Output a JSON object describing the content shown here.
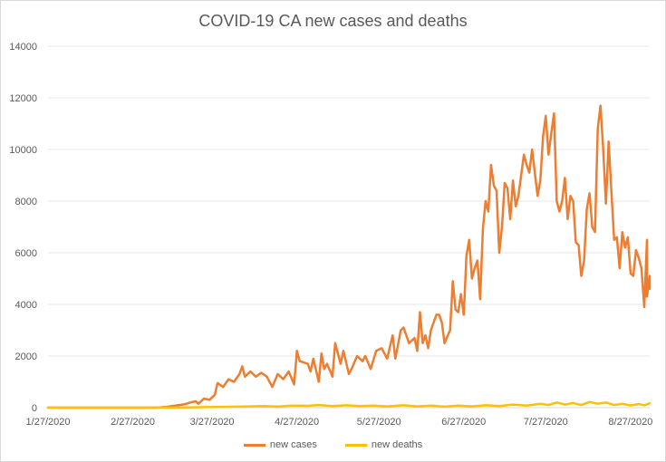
{
  "chart_data": {
    "type": "line",
    "title": "COVID-19 CA new cases and deaths",
    "xlabel": "",
    "ylabel": "",
    "x_ticks": [
      "1/27/2020",
      "2/27/2020",
      "3/27/2020",
      "4/27/2020",
      "5/27/2020",
      "6/27/2020",
      "7/27/2020",
      "8/27/2020"
    ],
    "xlim": [
      "2020-01-27",
      "2020-09-03"
    ],
    "ylim": [
      0,
      14000
    ],
    "y_ticks": [
      "0",
      "2000",
      "4000",
      "6000",
      "8000",
      "10000",
      "12000",
      "14000"
    ],
    "grid": true,
    "legend_position": "bottom",
    "series": [
      {
        "name": "new cases",
        "color": "#ED7D31",
        "points": [
          [
            "2020-01-27",
            0
          ],
          [
            "2020-02-05",
            0
          ],
          [
            "2020-02-27",
            0
          ],
          [
            "2020-03-01",
            0
          ],
          [
            "2020-03-05",
            0
          ],
          [
            "2020-03-08",
            10
          ],
          [
            "2020-03-11",
            40
          ],
          [
            "2020-03-13",
            70
          ],
          [
            "2020-03-15",
            100
          ],
          [
            "2020-03-17",
            130
          ],
          [
            "2020-03-19",
            200
          ],
          [
            "2020-03-21",
            250
          ],
          [
            "2020-03-22",
            150
          ],
          [
            "2020-03-24",
            350
          ],
          [
            "2020-03-26",
            300
          ],
          [
            "2020-03-28",
            500
          ],
          [
            "2020-03-29",
            950
          ],
          [
            "2020-03-31",
            800
          ],
          [
            "2020-04-02",
            1100
          ],
          [
            "2020-04-04",
            1000
          ],
          [
            "2020-04-06",
            1300
          ],
          [
            "2020-04-07",
            1600
          ],
          [
            "2020-04-08",
            1200
          ],
          [
            "2020-04-10",
            1400
          ],
          [
            "2020-04-12",
            1200
          ],
          [
            "2020-04-14",
            1350
          ],
          [
            "2020-04-16",
            1200
          ],
          [
            "2020-04-18",
            800
          ],
          [
            "2020-04-20",
            1300
          ],
          [
            "2020-04-22",
            1100
          ],
          [
            "2020-04-24",
            1400
          ],
          [
            "2020-04-26",
            900
          ],
          [
            "2020-04-27",
            2200
          ],
          [
            "2020-04-28",
            1800
          ],
          [
            "2020-05-01",
            1700
          ],
          [
            "2020-05-02",
            1400
          ],
          [
            "2020-05-03",
            1900
          ],
          [
            "2020-05-05",
            1000
          ],
          [
            "2020-05-06",
            2100
          ],
          [
            "2020-05-07",
            1500
          ],
          [
            "2020-05-08",
            1700
          ],
          [
            "2020-05-10",
            1200
          ],
          [
            "2020-05-11",
            2500
          ],
          [
            "2020-05-13",
            1700
          ],
          [
            "2020-05-14",
            2200
          ],
          [
            "2020-05-16",
            1300
          ],
          [
            "2020-05-17",
            1500
          ],
          [
            "2020-05-19",
            2000
          ],
          [
            "2020-05-21",
            1800
          ],
          [
            "2020-05-22",
            2000
          ],
          [
            "2020-05-24",
            1500
          ],
          [
            "2020-05-26",
            2200
          ],
          [
            "2020-05-28",
            2300
          ],
          [
            "2020-05-30",
            1900
          ],
          [
            "2020-06-01",
            2800
          ],
          [
            "2020-06-02",
            1900
          ],
          [
            "2020-06-04",
            3000
          ],
          [
            "2020-06-05",
            3100
          ],
          [
            "2020-06-07",
            2500
          ],
          [
            "2020-06-09",
            2700
          ],
          [
            "2020-06-10",
            2200
          ],
          [
            "2020-06-11",
            3700
          ],
          [
            "2020-06-12",
            2500
          ],
          [
            "2020-06-13",
            2800
          ],
          [
            "2020-06-14",
            2300
          ],
          [
            "2020-06-15",
            3000
          ],
          [
            "2020-06-17",
            3600
          ],
          [
            "2020-06-18",
            3600
          ],
          [
            "2020-06-19",
            3300
          ],
          [
            "2020-06-20",
            2500
          ],
          [
            "2020-06-22",
            3000
          ],
          [
            "2020-06-23",
            4900
          ],
          [
            "2020-06-24",
            3800
          ],
          [
            "2020-06-25",
            3700
          ],
          [
            "2020-06-26",
            4400
          ],
          [
            "2020-06-27",
            3600
          ],
          [
            "2020-06-28",
            5900
          ],
          [
            "2020-06-29",
            6500
          ],
          [
            "2020-06-30",
            5000
          ],
          [
            "2020-07-01",
            5400
          ],
          [
            "2020-07-02",
            5700
          ],
          [
            "2020-07-03",
            4200
          ],
          [
            "2020-07-04",
            6900
          ],
          [
            "2020-07-05",
            8000
          ],
          [
            "2020-07-06",
            7600
          ],
          [
            "2020-07-07",
            9400
          ],
          [
            "2020-07-08",
            8600
          ],
          [
            "2020-07-09",
            8400
          ],
          [
            "2020-07-10",
            6000
          ],
          [
            "2020-07-11",
            7000
          ],
          [
            "2020-07-12",
            8700
          ],
          [
            "2020-07-13",
            8500
          ],
          [
            "2020-07-14",
            7300
          ],
          [
            "2020-07-15",
            8800
          ],
          [
            "2020-07-16",
            7800
          ],
          [
            "2020-07-17",
            8200
          ],
          [
            "2020-07-19",
            9800
          ],
          [
            "2020-07-20",
            9400
          ],
          [
            "2020-07-21",
            9100
          ],
          [
            "2020-07-22",
            10000
          ],
          [
            "2020-07-24",
            8200
          ],
          [
            "2020-07-25",
            8800
          ],
          [
            "2020-07-26",
            10500
          ],
          [
            "2020-07-27",
            11300
          ],
          [
            "2020-07-28",
            9800
          ],
          [
            "2020-07-29",
            10600
          ],
          [
            "2020-07-30",
            11400
          ],
          [
            "2020-07-31",
            8000
          ],
          [
            "2020-08-01",
            7600
          ],
          [
            "2020-08-02",
            8000
          ],
          [
            "2020-08-03",
            8900
          ],
          [
            "2020-08-04",
            7300
          ],
          [
            "2020-08-05",
            8200
          ],
          [
            "2020-08-06",
            8000
          ],
          [
            "2020-08-07",
            6400
          ],
          [
            "2020-08-08",
            6300
          ],
          [
            "2020-08-09",
            5100
          ],
          [
            "2020-08-10",
            5700
          ],
          [
            "2020-08-11",
            7700
          ],
          [
            "2020-08-12",
            8300
          ],
          [
            "2020-08-13",
            7000
          ],
          [
            "2020-08-14",
            6800
          ],
          [
            "2020-08-15",
            10800
          ],
          [
            "2020-08-16",
            11700
          ],
          [
            "2020-08-17",
            10000
          ],
          [
            "2020-08-18",
            7900
          ],
          [
            "2020-08-19",
            10300
          ],
          [
            "2020-08-20",
            8400
          ],
          [
            "2020-08-21",
            6500
          ],
          [
            "2020-08-22",
            6600
          ],
          [
            "2020-08-23",
            5400
          ],
          [
            "2020-08-24",
            6800
          ],
          [
            "2020-08-25",
            6200
          ],
          [
            "2020-08-26",
            6600
          ],
          [
            "2020-08-27",
            5200
          ],
          [
            "2020-08-28",
            5100
          ],
          [
            "2020-08-29",
            6100
          ],
          [
            "2020-08-30",
            5800
          ],
          [
            "2020-08-31",
            5400
          ],
          [
            "2020-09-01",
            3900
          ],
          [
            "2020-09-02",
            6500
          ],
          [
            "2020-09-02",
            4300
          ],
          [
            "2020-09-03",
            5100
          ],
          [
            "2020-09-03",
            4600
          ]
        ]
      },
      {
        "name": "new deaths",
        "color": "#FFC000",
        "points": [
          [
            "2020-01-27",
            0
          ],
          [
            "2020-02-05",
            0
          ],
          [
            "2020-02-27",
            0
          ],
          [
            "2020-03-05",
            0
          ],
          [
            "2020-03-15",
            5
          ],
          [
            "2020-03-25",
            20
          ],
          [
            "2020-04-05",
            40
          ],
          [
            "2020-04-15",
            60
          ],
          [
            "2020-04-20",
            40
          ],
          [
            "2020-04-25",
            80
          ],
          [
            "2020-05-01",
            70
          ],
          [
            "2020-05-05",
            100
          ],
          [
            "2020-05-10",
            60
          ],
          [
            "2020-05-15",
            90
          ],
          [
            "2020-05-20",
            60
          ],
          [
            "2020-05-25",
            80
          ],
          [
            "2020-05-30",
            50
          ],
          [
            "2020-06-05",
            90
          ],
          [
            "2020-06-10",
            50
          ],
          [
            "2020-06-15",
            80
          ],
          [
            "2020-06-20",
            40
          ],
          [
            "2020-06-25",
            80
          ],
          [
            "2020-06-30",
            50
          ],
          [
            "2020-07-05",
            90
          ],
          [
            "2020-07-10",
            60
          ],
          [
            "2020-07-15",
            120
          ],
          [
            "2020-07-20",
            80
          ],
          [
            "2020-07-25",
            150
          ],
          [
            "2020-07-28",
            100
          ],
          [
            "2020-07-31",
            200
          ],
          [
            "2020-08-03",
            120
          ],
          [
            "2020-08-06",
            180
          ],
          [
            "2020-08-09",
            100
          ],
          [
            "2020-08-12",
            220
          ],
          [
            "2020-08-15",
            150
          ],
          [
            "2020-08-18",
            200
          ],
          [
            "2020-08-21",
            100
          ],
          [
            "2020-08-24",
            150
          ],
          [
            "2020-08-27",
            80
          ],
          [
            "2020-08-30",
            140
          ],
          [
            "2020-09-01",
            90
          ],
          [
            "2020-09-03",
            170
          ]
        ]
      }
    ]
  }
}
